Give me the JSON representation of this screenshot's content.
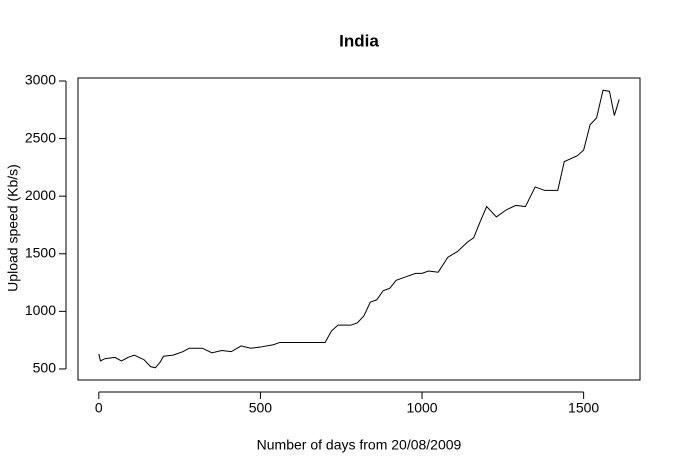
{
  "chart_data": {
    "type": "line",
    "title": "India",
    "x_label": "Number of days from 20/08/2009",
    "y_label": "Upload speed (Kb/s)",
    "x": [
      0,
      5,
      20,
      50,
      70,
      90,
      110,
      140,
      160,
      175,
      190,
      200,
      230,
      260,
      280,
      320,
      350,
      380,
      410,
      440,
      470,
      500,
      540,
      560,
      600,
      650,
      700,
      720,
      740,
      780,
      800,
      820,
      840,
      860,
      880,
      900,
      920,
      950,
      980,
      1000,
      1020,
      1050,
      1080,
      1110,
      1140,
      1160,
      1180,
      1200,
      1230,
      1260,
      1290,
      1320,
      1350,
      1380,
      1420,
      1440,
      1480,
      1500,
      1520,
      1540,
      1560,
      1580,
      1595,
      1610
    ],
    "values": [
      630,
      570,
      590,
      600,
      570,
      600,
      620,
      580,
      520,
      510,
      560,
      610,
      620,
      650,
      680,
      680,
      640,
      660,
      650,
      700,
      680,
      690,
      710,
      730,
      730,
      730,
      730,
      830,
      880,
      880,
      900,
      960,
      1080,
      1100,
      1180,
      1200,
      1270,
      1300,
      1330,
      1330,
      1350,
      1340,
      1470,
      1520,
      1600,
      1640,
      1780,
      1910,
      1820,
      1880,
      1920,
      1910,
      2080,
      2050,
      2050,
      2300,
      2350,
      2400,
      2620,
      2680,
      2920,
      2910,
      2700,
      2840
    ],
    "color": "#000000",
    "xlim": [
      -64.4,
      1674.4
    ],
    "xticks": [
      0,
      500,
      1000,
      1500
    ],
    "ylim": [
      404,
      3026
    ],
    "yticks": [
      500,
      1000,
      1500,
      2000,
      2500,
      3000
    ],
    "grid": false
  }
}
